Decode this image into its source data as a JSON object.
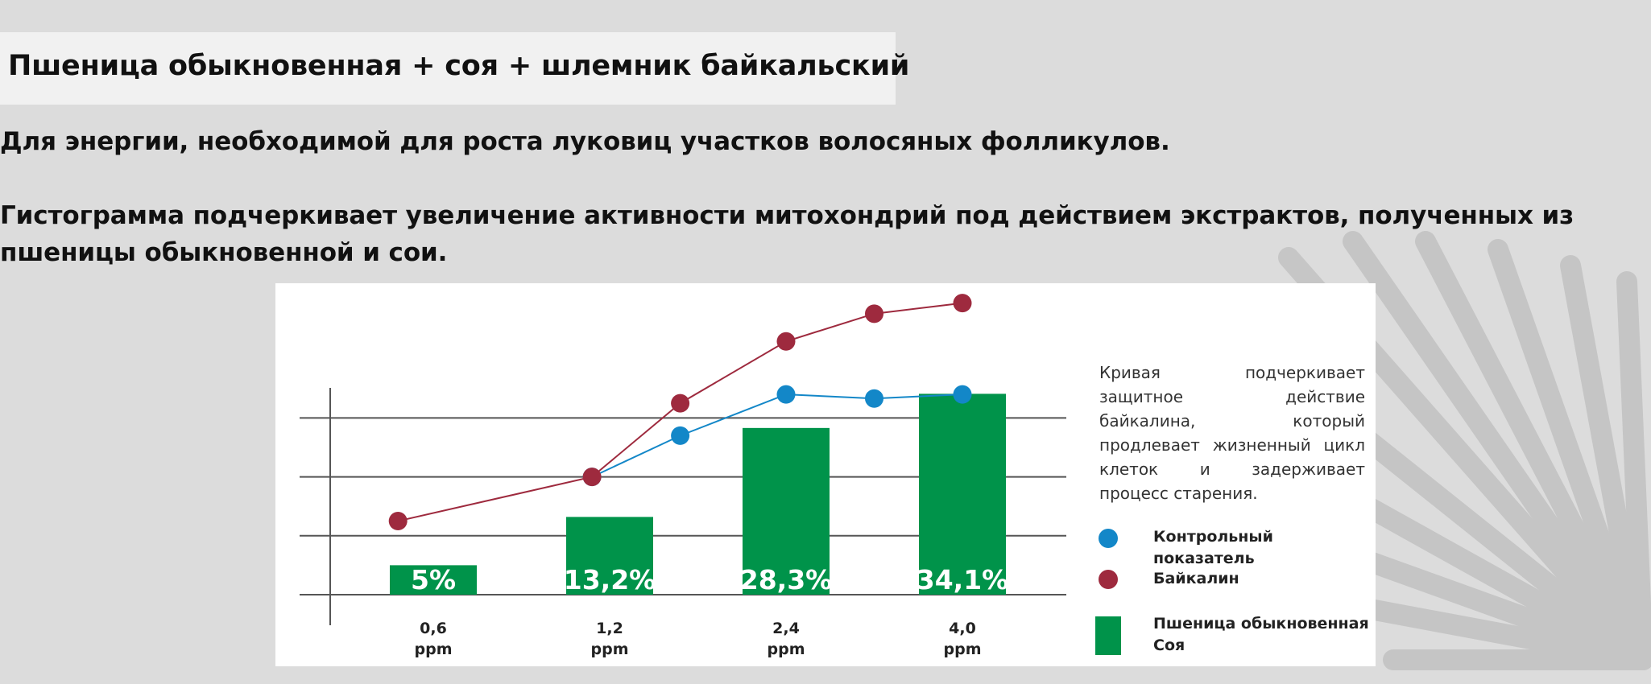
{
  "title": "Пшеница обыкновенная + соя + шлемник байкальский",
  "subtitle1": "Для энергии, необходимой для роста луковиц участков волосяных фолликулов.",
  "subtitle2_line1": "Гистограмма подчеркивает увеличение активности митохондрий под действием экстрактов, полученных из",
  "subtitle2_line2": "пшеницы обыкновенной и сои.",
  "chart_data": {
    "type": "bar",
    "categories": [
      "0,6",
      "1,2",
      "2,4",
      "4,0"
    ],
    "unit": "ppm",
    "bar_values": [
      5,
      13.2,
      28.3,
      34.1
    ],
    "bar_labels": [
      "5%",
      "13,2%",
      "28,3%",
      "34,1%"
    ],
    "ylim": [
      0,
      40
    ],
    "grid": true,
    "line_series": [
      {
        "name": "Контрольный показатель",
        "color": "#1387c8",
        "points": [
          [
            0.9,
            20
          ],
          [
            1.4,
            27
          ],
          [
            2.0,
            34
          ],
          [
            2.5,
            33.3
          ],
          [
            3.0,
            34
          ]
        ]
      },
      {
        "name": "Байкалин",
        "color": "#9e2a3e",
        "points": [
          [
            -0.2,
            12.5
          ],
          [
            0.9,
            20
          ],
          [
            1.4,
            32.5
          ],
          [
            2.0,
            43
          ],
          [
            2.5,
            47.7
          ],
          [
            3.0,
            49.5
          ]
        ]
      }
    ],
    "description": "Кривая подчеркивает защитное действие байкалина, который продлевает жизненный цикл клеток и задерживает процесс старения.",
    "legend": {
      "control": "Контрольный показатель",
      "baicalin": "Байкалин",
      "bars_line1": "Пшеница обыкновенная",
      "bars_line2": "Соя"
    },
    "colors": {
      "bar": "#00934a",
      "control": "#1387c8",
      "baicalin": "#9e2a3e",
      "grid": "#555555"
    }
  }
}
